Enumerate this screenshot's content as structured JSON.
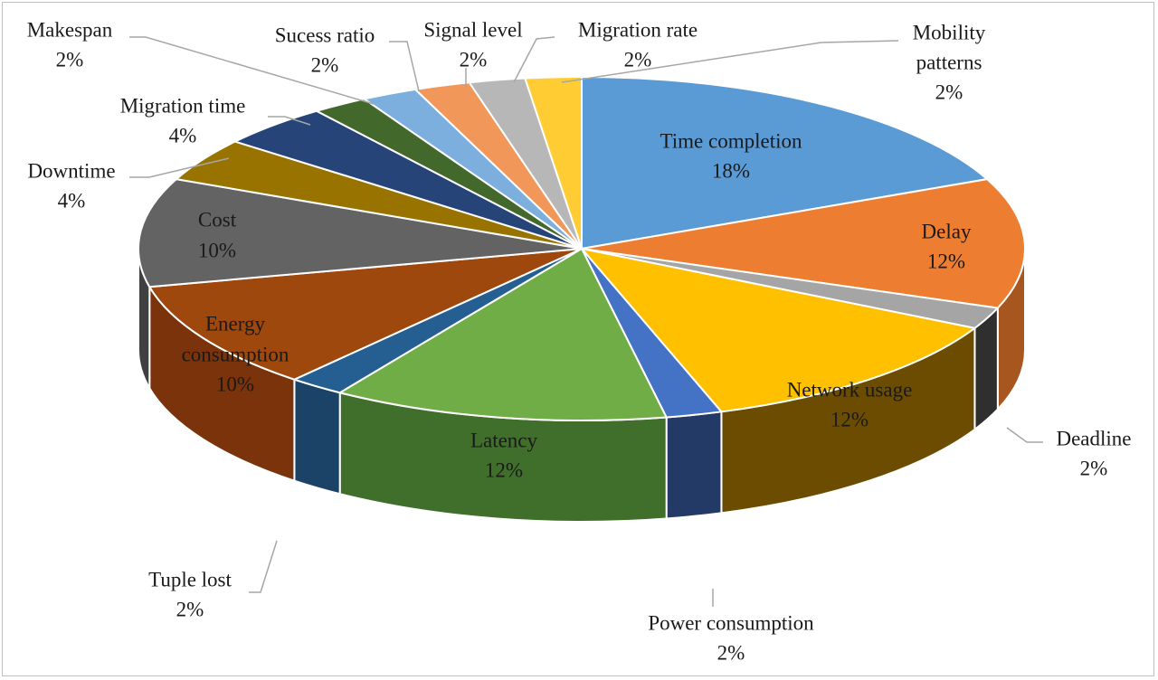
{
  "chart_data": {
    "type": "pie",
    "style": "3d-exploded-pie",
    "slices": [
      {
        "label": "Time completion",
        "value": 18,
        "pct_label": "18%",
        "color": "#5B9BD5",
        "side": "#3f6f99",
        "inside": true
      },
      {
        "label": "Delay",
        "value": 12,
        "pct_label": "12%",
        "color": "#ED7D31",
        "side": "#a8561f",
        "inside": true
      },
      {
        "label": "Deadline",
        "value": 2,
        "pct_label": "2%",
        "color": "#A5A5A5",
        "side": "#2f2f2f",
        "inside": false
      },
      {
        "label": "Network usage",
        "value": 12,
        "pct_label": "12%",
        "color": "#FFC000",
        "side": "#6b4c00",
        "inside": true
      },
      {
        "label": "Power consumption",
        "value": 2,
        "pct_label": "2%",
        "color": "#4472C4",
        "side": "#243a66",
        "inside": false
      },
      {
        "label": "Latency",
        "value": 12,
        "pct_label": "12%",
        "color": "#70AD47",
        "side": "#3f6f2a",
        "inside": true
      },
      {
        "label": "Tuple lost",
        "value": 2,
        "pct_label": "2%",
        "color": "#255E91",
        "side": "#1b4368",
        "inside": false
      },
      {
        "label": "Energy consumption",
        "value": 10,
        "pct_label": "10%",
        "color": "#9E480E",
        "side": "#7a330a",
        "inside": true
      },
      {
        "label": "Cost",
        "value": 10,
        "pct_label": "10%",
        "color": "#636363",
        "side": "#404040",
        "inside": true
      },
      {
        "label": "Downtime",
        "value": 4,
        "pct_label": "4%",
        "color": "#997300",
        "side": "#6b5000",
        "inside": false
      },
      {
        "label": "Migration time",
        "value": 4,
        "pct_label": "4%",
        "color": "#264478",
        "side": "#182c50",
        "inside": false
      },
      {
        "label": "Makespan",
        "value": 2,
        "pct_label": "2%",
        "color": "#43682B",
        "side": "#2c461c",
        "inside": false
      },
      {
        "label": "Sucess ratio",
        "value": 2,
        "pct_label": "2%",
        "color": "#7CAFDD",
        "side": "#5a84a8",
        "inside": false
      },
      {
        "label": "Signal level",
        "value": 2,
        "pct_label": "2%",
        "color": "#F1975A",
        "side": "#b56d3c",
        "inside": false
      },
      {
        "label": "Migration rate",
        "value": 2,
        "pct_label": "2%",
        "color": "#B7B7B7",
        "side": "#8a8a8a",
        "inside": false
      },
      {
        "label": "Mobility patterns",
        "value": 2,
        "pct_label": "2%",
        "color": "#FFCD33",
        "side": "#b38f1f",
        "inside": false
      }
    ],
    "legend": "none",
    "data_labels": "category name and percentage"
  }
}
